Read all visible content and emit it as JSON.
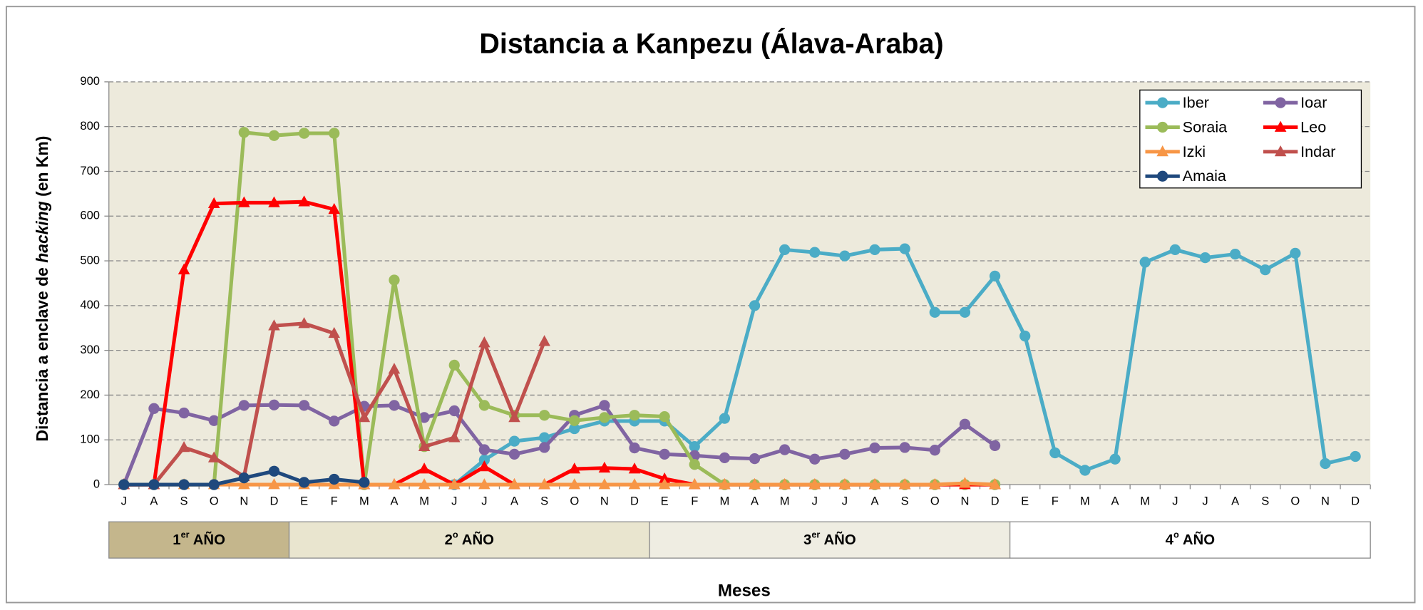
{
  "chart_data": {
    "type": "line",
    "title": "Distancia a Kanpezu (Álava-Araba)",
    "ylabel": [
      "Distancia a enclave de ",
      "hacking",
      " (en Km)"
    ],
    "xlabel": "Meses",
    "categories": [
      "J",
      "A",
      "S",
      "O",
      "N",
      "D",
      "E",
      "F",
      "M",
      "A",
      "M",
      "J",
      "J",
      "A",
      "S",
      "O",
      "N",
      "D",
      "E",
      "F",
      "M",
      "A",
      "M",
      "J",
      "J",
      "A",
      "S",
      "O",
      "N",
      "D",
      "E",
      "F",
      "M",
      "A",
      "M",
      "J",
      "J",
      "A",
      "S",
      "O",
      "N",
      "D"
    ],
    "year_bands": [
      {
        "number": "1",
        "suffix": "er",
        "word": "AÑO"
      },
      {
        "number": "2",
        "suffix": "o",
        "word": "AÑO"
      },
      {
        "number": "3",
        "suffix": "er",
        "word": "AÑO"
      },
      {
        "number": "4",
        "suffix": "o",
        "word": "AÑO"
      }
    ],
    "ylim": [
      0,
      900
    ],
    "yticks": [
      0,
      100,
      200,
      300,
      400,
      500,
      600,
      700,
      800,
      900
    ],
    "grid": true,
    "legend": "upper right",
    "series": [
      {
        "name": "Iber",
        "color": "#4bacc6",
        "marker": "circle",
        "values": [
          null,
          null,
          null,
          null,
          null,
          null,
          null,
          null,
          null,
          null,
          null,
          0,
          55,
          97,
          105,
          125,
          142,
          142,
          142,
          85,
          148,
          400,
          525,
          519,
          511,
          525,
          527,
          385,
          385,
          466,
          332,
          71,
          32,
          57,
          497,
          525,
          507,
          515,
          480,
          517,
          47,
          63
        ]
      },
      {
        "name": "Ioar",
        "color": "#8064a2",
        "marker": "circle",
        "values": [
          0,
          170,
          160,
          143,
          177,
          178,
          177,
          142,
          175,
          177,
          150,
          165,
          78,
          68,
          83,
          155,
          177,
          82,
          68,
          65,
          60,
          58,
          78,
          57,
          68,
          82,
          83,
          77,
          135,
          87,
          null,
          null,
          null,
          null,
          null,
          null,
          null,
          null,
          null,
          null,
          null,
          null
        ]
      },
      {
        "name": "Soraia",
        "color": "#9bbb59",
        "marker": "circle",
        "values": [
          0,
          0,
          0,
          0,
          787,
          780,
          785,
          785,
          0,
          457,
          85,
          267,
          177,
          155,
          155,
          143,
          150,
          155,
          152,
          45,
          0,
          0,
          0,
          0,
          0,
          0,
          0,
          0,
          0,
          0,
          null,
          null,
          null,
          null,
          null,
          null,
          null,
          null,
          null,
          null,
          null,
          null
        ]
      },
      {
        "name": "Leo",
        "color": "#ff0000",
        "marker": "triangle",
        "values": [
          0,
          0,
          480,
          628,
          630,
          630,
          632,
          615,
          0,
          0,
          35,
          0,
          40,
          0,
          0,
          35,
          37,
          35,
          13,
          0,
          0,
          0,
          0,
          0,
          0,
          0,
          0,
          0,
          0,
          0,
          null,
          null,
          null,
          null,
          null,
          null,
          null,
          null,
          null,
          null,
          null,
          null
        ]
      },
      {
        "name": "Izki",
        "color": "#f79646",
        "marker": "triangle",
        "values": [
          0,
          0,
          0,
          0,
          0,
          0,
          0,
          0,
          0,
          0,
          0,
          0,
          0,
          0,
          0,
          0,
          0,
          0,
          0,
          0,
          0,
          0,
          0,
          0,
          0,
          0,
          0,
          0,
          3,
          0,
          null,
          null,
          null,
          null,
          null,
          null,
          null,
          null,
          null,
          null,
          null,
          null
        ]
      },
      {
        "name": "Indar",
        "color": "#c0504d",
        "marker": "triangle",
        "values": [
          0,
          0,
          83,
          60,
          18,
          355,
          360,
          338,
          150,
          258,
          85,
          105,
          317,
          150,
          320,
          null,
          null,
          null,
          null,
          null,
          null,
          null,
          null,
          null,
          null,
          null,
          null,
          null,
          null,
          null,
          null,
          null,
          null,
          null,
          null,
          null,
          null,
          null,
          null,
          null,
          null,
          null
        ]
      },
      {
        "name": "Amaia",
        "color": "#1f497d",
        "marker": "circle",
        "values": [
          0,
          0,
          0,
          0,
          15,
          30,
          5,
          12,
          5,
          null,
          null,
          null,
          null,
          null,
          null,
          null,
          null,
          null,
          null,
          null,
          null,
          null,
          null,
          null,
          null,
          null,
          null,
          null,
          null,
          null,
          null,
          null,
          null,
          null,
          null,
          null,
          null,
          null,
          null,
          null,
          null,
          null
        ]
      }
    ]
  }
}
